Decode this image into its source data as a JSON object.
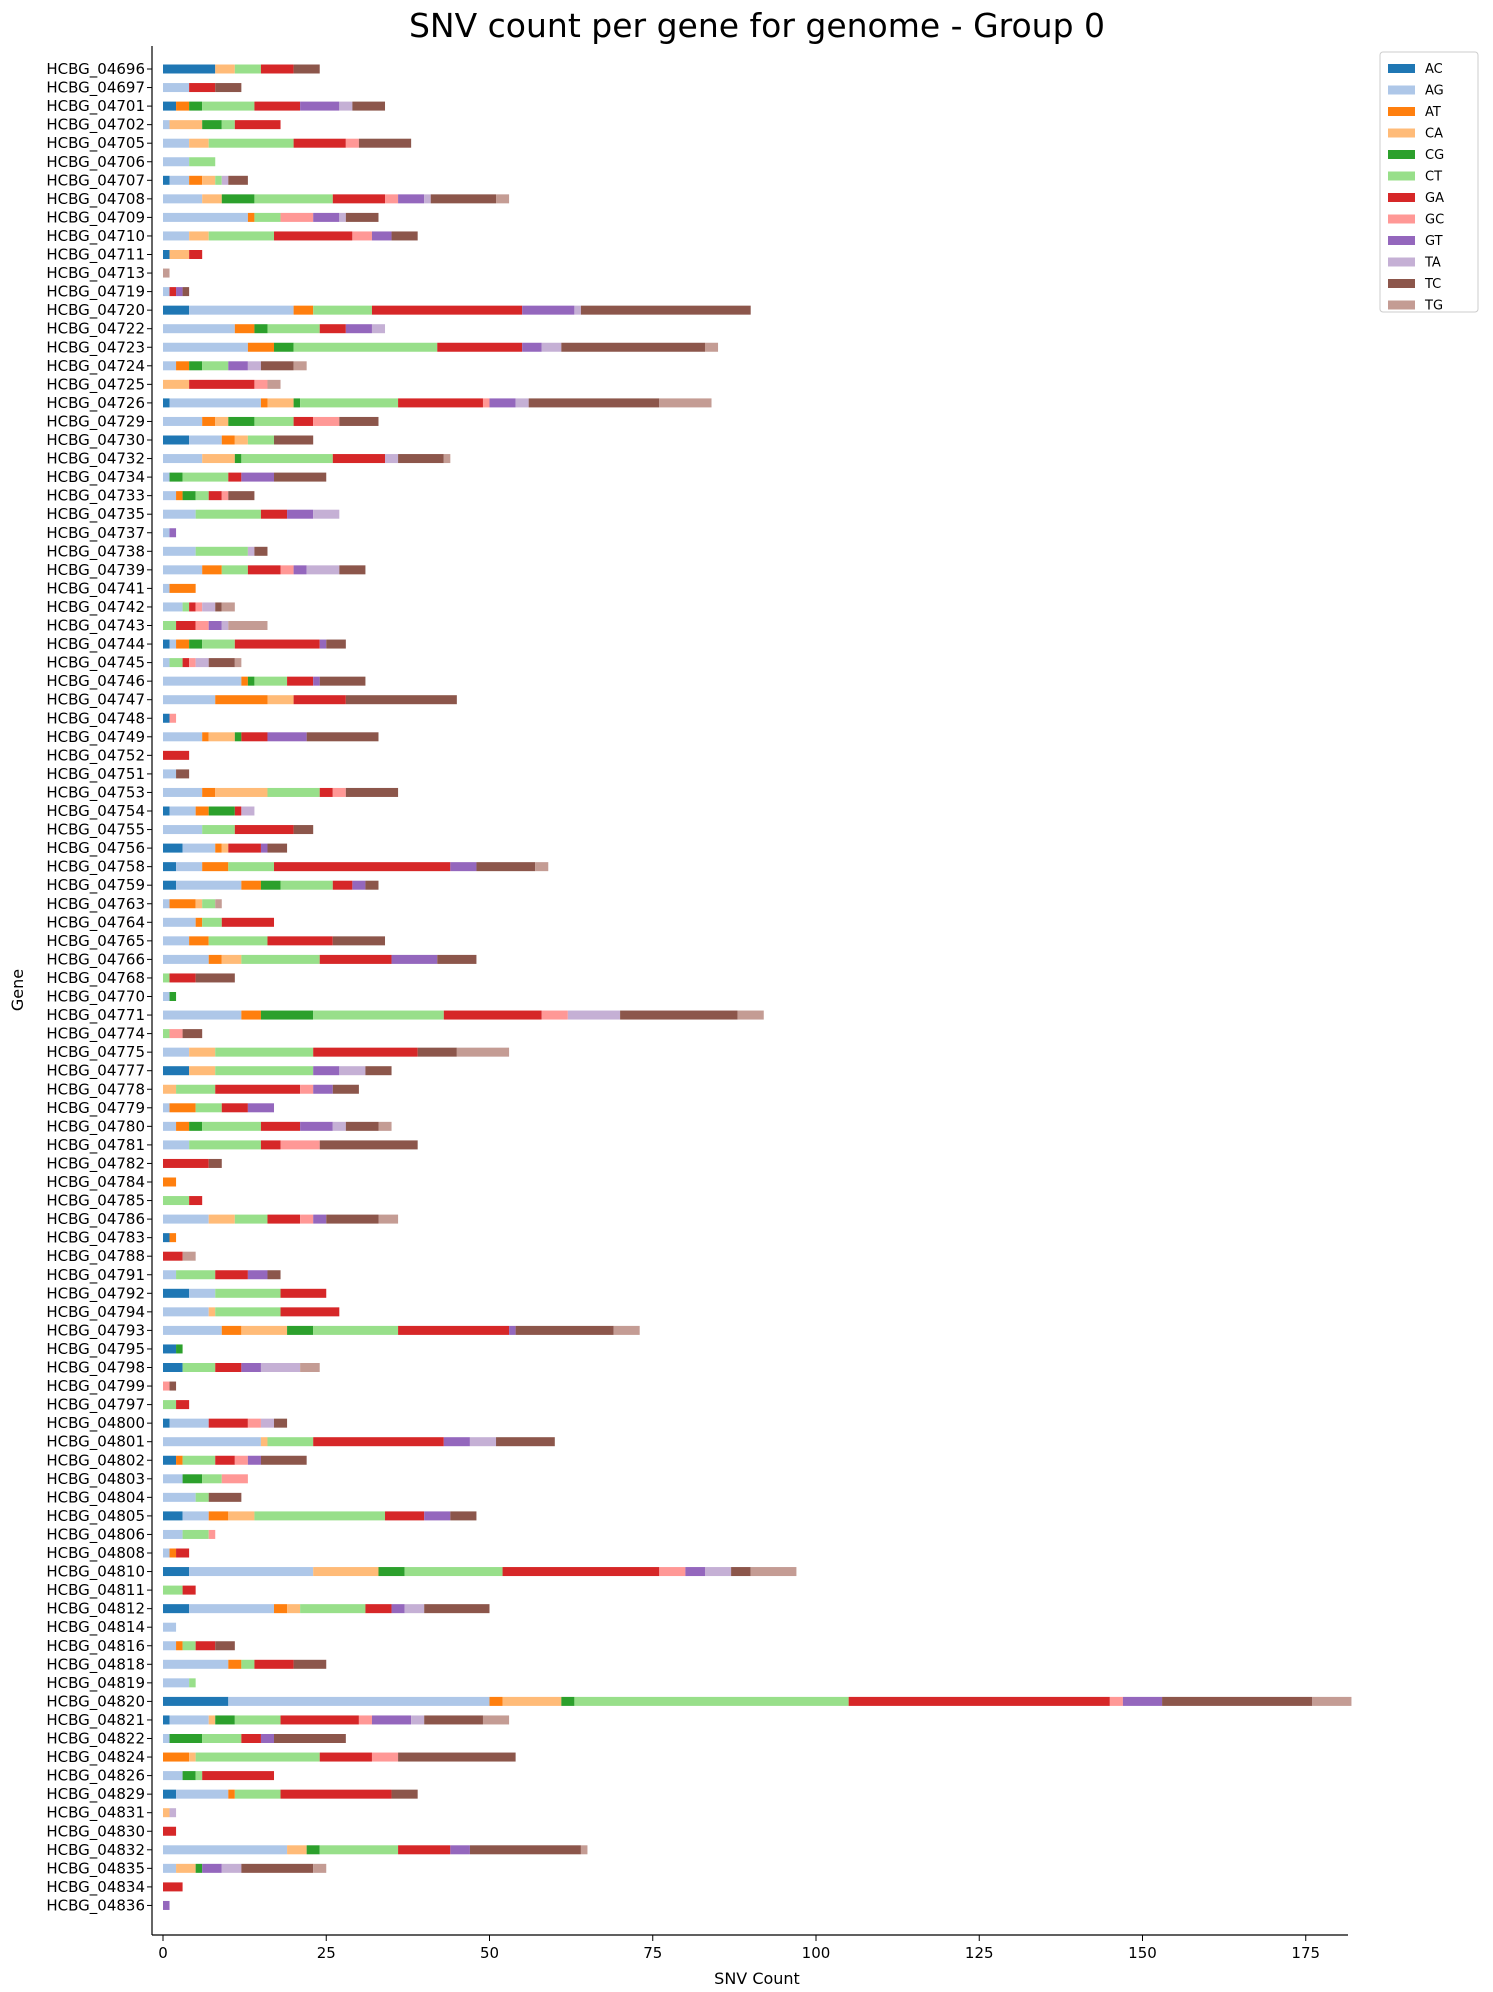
{
  "chart_data": {
    "type": "bar",
    "orientation": "horizontal",
    "stacked": true,
    "title": "SNV count per gene for genome - Group 0",
    "xlabel": "SNV Count",
    "ylabel": "Gene",
    "xlim": [
      0,
      182
    ],
    "xticks": [
      0,
      25,
      50,
      75,
      100,
      125,
      150,
      175
    ],
    "legend_position": "outside-top-right",
    "series_colors": [
      "#1f77b4",
      "#aec7e8",
      "#ff7f0e",
      "#ffbb78",
      "#2ca02c",
      "#98df8a",
      "#d62728",
      "#ff9896",
      "#9467bd",
      "#c5b0d5",
      "#8c564b",
      "#c49c94"
    ],
    "series_names": [
      "AC",
      "AG",
      "AT",
      "CA",
      "CG",
      "CT",
      "GA",
      "GC",
      "GT",
      "TA",
      "TC",
      "TG"
    ],
    "categories": [
      "HCBG_04696",
      "HCBG_04697",
      "HCBG_04701",
      "HCBG_04702",
      "HCBG_04705",
      "HCBG_04706",
      "HCBG_04707",
      "HCBG_04708",
      "HCBG_04709",
      "HCBG_04710",
      "HCBG_04711",
      "HCBG_04713",
      "HCBG_04719",
      "HCBG_04720",
      "HCBG_04722",
      "HCBG_04723",
      "HCBG_04724",
      "HCBG_04725",
      "HCBG_04726",
      "HCBG_04729",
      "HCBG_04730",
      "HCBG_04732",
      "HCBG_04734",
      "HCBG_04733",
      "HCBG_04735",
      "HCBG_04737",
      "HCBG_04738",
      "HCBG_04739",
      "HCBG_04741",
      "HCBG_04742",
      "HCBG_04743",
      "HCBG_04744",
      "HCBG_04745",
      "HCBG_04746",
      "HCBG_04747",
      "HCBG_04748",
      "HCBG_04749",
      "HCBG_04752",
      "HCBG_04751",
      "HCBG_04753",
      "HCBG_04754",
      "HCBG_04755",
      "HCBG_04756",
      "HCBG_04758",
      "HCBG_04759",
      "HCBG_04763",
      "HCBG_04764",
      "HCBG_04765",
      "HCBG_04766",
      "HCBG_04768",
      "HCBG_04770",
      "HCBG_04771",
      "HCBG_04774",
      "HCBG_04775",
      "HCBG_04777",
      "HCBG_04778",
      "HCBG_04779",
      "HCBG_04780",
      "HCBG_04781",
      "HCBG_04782",
      "HCBG_04784",
      "HCBG_04785",
      "HCBG_04786",
      "HCBG_04783",
      "HCBG_04788",
      "HCBG_04791",
      "HCBG_04792",
      "HCBG_04794",
      "HCBG_04793",
      "HCBG_04795",
      "HCBG_04798",
      "HCBG_04799",
      "HCBG_04797",
      "HCBG_04800",
      "HCBG_04801",
      "HCBG_04802",
      "HCBG_04803",
      "HCBG_04804",
      "HCBG_04805",
      "HCBG_04806",
      "HCBG_04808",
      "HCBG_04810",
      "HCBG_04811",
      "HCBG_04812",
      "HCBG_04814",
      "HCBG_04816",
      "HCBG_04818",
      "HCBG_04819",
      "HCBG_04820",
      "HCBG_04821",
      "HCBG_04822",
      "HCBG_04824",
      "HCBG_04826",
      "HCBG_04829",
      "HCBG_04831",
      "HCBG_04830",
      "HCBG_04832",
      "HCBG_04835",
      "HCBG_04834",
      "HCBG_04836"
    ],
    "values": [
      [
        8,
        0,
        0,
        3,
        0,
        4,
        5,
        0,
        0,
        0,
        4,
        0
      ],
      [
        0,
        4,
        0,
        0,
        0,
        0,
        4,
        0,
        0,
        0,
        4,
        0
      ],
      [
        2,
        0,
        2,
        0,
        2,
        8,
        7,
        0,
        6,
        2,
        5,
        0
      ],
      [
        0,
        1,
        0,
        5,
        3,
        2,
        7,
        0,
        0,
        0,
        0,
        0
      ],
      [
        0,
        4,
        0,
        3,
        0,
        13,
        8,
        2,
        0,
        0,
        8,
        0
      ],
      [
        0,
        4,
        0,
        0,
        0,
        4,
        0,
        0,
        0,
        0,
        0,
        0
      ],
      [
        1,
        3,
        2,
        2,
        0,
        1,
        0,
        0,
        0,
        1,
        3,
        0
      ],
      [
        0,
        6,
        0,
        3,
        5,
        12,
        8,
        2,
        4,
        1,
        10,
        2
      ],
      [
        0,
        13,
        1,
        0,
        0,
        4,
        0,
        5,
        4,
        1,
        5,
        0
      ],
      [
        0,
        4,
        0,
        3,
        0,
        10,
        12,
        3,
        3,
        0,
        4,
        0
      ],
      [
        1,
        0,
        0,
        3,
        0,
        0,
        2,
        0,
        0,
        0,
        0,
        0
      ],
      [
        0,
        0,
        0,
        0,
        0,
        0,
        0,
        0,
        0,
        0,
        0,
        1
      ],
      [
        0,
        1,
        0,
        0,
        0,
        0,
        1,
        0,
        1,
        0,
        1,
        0
      ],
      [
        4,
        16,
        3,
        0,
        0,
        9,
        23,
        0,
        8,
        1,
        26,
        0
      ],
      [
        0,
        11,
        3,
        0,
        2,
        8,
        4,
        0,
        4,
        2,
        0,
        0
      ],
      [
        0,
        13,
        4,
        0,
        3,
        22,
        13,
        0,
        3,
        3,
        22,
        2
      ],
      [
        0,
        2,
        2,
        0,
        2,
        4,
        0,
        0,
        3,
        2,
        5,
        2
      ],
      [
        0,
        0,
        0,
        4,
        0,
        0,
        10,
        2,
        0,
        0,
        0,
        2
      ],
      [
        1,
        14,
        1,
        4,
        1,
        15,
        13,
        1,
        4,
        2,
        20,
        8
      ],
      [
        0,
        6,
        2,
        2,
        4,
        6,
        3,
        4,
        0,
        0,
        6,
        0
      ],
      [
        4,
        5,
        2,
        2,
        0,
        4,
        0,
        0,
        0,
        0,
        6,
        0
      ],
      [
        0,
        6,
        0,
        5,
        1,
        14,
        8,
        0,
        0,
        2,
        7,
        1
      ],
      [
        0,
        1,
        0,
        0,
        2,
        7,
        2,
        0,
        5,
        0,
        8,
        0
      ],
      [
        0,
        2,
        1,
        0,
        2,
        2,
        2,
        1,
        0,
        0,
        4,
        0
      ],
      [
        0,
        5,
        0,
        0,
        0,
        10,
        4,
        0,
        4,
        4,
        0,
        0
      ],
      [
        0,
        1,
        0,
        0,
        0,
        0,
        0,
        0,
        1,
        0,
        0,
        0
      ],
      [
        0,
        5,
        0,
        0,
        0,
        8,
        0,
        0,
        0,
        1,
        2,
        0
      ],
      [
        0,
        6,
        3,
        0,
        0,
        4,
        5,
        2,
        2,
        5,
        4,
        0
      ],
      [
        0,
        1,
        4,
        0,
        0,
        0,
        0,
        0,
        0,
        0,
        0,
        0
      ],
      [
        0,
        3,
        0,
        0,
        0,
        1,
        1,
        1,
        0,
        2,
        1,
        2
      ],
      [
        0,
        0,
        0,
        0,
        0,
        2,
        3,
        2,
        2,
        1,
        0,
        6
      ],
      [
        1,
        1,
        2,
        0,
        2,
        5,
        13,
        0,
        1,
        0,
        3,
        0
      ],
      [
        0,
        1,
        0,
        0,
        0,
        2,
        1,
        1,
        0,
        2,
        4,
        1
      ],
      [
        0,
        12,
        1,
        0,
        1,
        5,
        4,
        0,
        1,
        0,
        7,
        0
      ],
      [
        0,
        8,
        8,
        4,
        0,
        0,
        8,
        0,
        0,
        0,
        17,
        0
      ],
      [
        1,
        0,
        0,
        0,
        0,
        0,
        0,
        1,
        0,
        0,
        0,
        0
      ],
      [
        0,
        6,
        1,
        4,
        1,
        0,
        4,
        0,
        6,
        0,
        11,
        0
      ],
      [
        0,
        0,
        0,
        0,
        0,
        0,
        4,
        0,
        0,
        0,
        0,
        0
      ],
      [
        0,
        2,
        0,
        0,
        0,
        0,
        0,
        0,
        0,
        0,
        2,
        0
      ],
      [
        0,
        6,
        2,
        8,
        0,
        8,
        2,
        2,
        0,
        0,
        8,
        0
      ],
      [
        1,
        4,
        2,
        0,
        4,
        0,
        1,
        0,
        0,
        2,
        0,
        0
      ],
      [
        0,
        6,
        0,
        0,
        0,
        5,
        9,
        0,
        0,
        0,
        3,
        0
      ],
      [
        3,
        5,
        1,
        1,
        0,
        0,
        5,
        0,
        1,
        0,
        3,
        0
      ],
      [
        2,
        4,
        4,
        0,
        0,
        7,
        27,
        0,
        4,
        0,
        9,
        2
      ],
      [
        2,
        10,
        3,
        0,
        3,
        8,
        3,
        0,
        2,
        0,
        2,
        0
      ],
      [
        0,
        1,
        4,
        1,
        0,
        2,
        0,
        0,
        0,
        0,
        0,
        1
      ],
      [
        0,
        5,
        1,
        0,
        0,
        3,
        8,
        0,
        0,
        0,
        0,
        0
      ],
      [
        0,
        4,
        3,
        0,
        0,
        9,
        10,
        0,
        0,
        0,
        8,
        0
      ],
      [
        0,
        7,
        2,
        3,
        0,
        12,
        11,
        0,
        7,
        0,
        6,
        0
      ],
      [
        0,
        0,
        0,
        0,
        0,
        1,
        4,
        0,
        0,
        0,
        6,
        0
      ],
      [
        0,
        1,
        0,
        0,
        1,
        0,
        0,
        0,
        0,
        0,
        0,
        0
      ],
      [
        0,
        12,
        3,
        0,
        8,
        20,
        15,
        4,
        0,
        8,
        18,
        4
      ],
      [
        0,
        0,
        0,
        0,
        0,
        1,
        0,
        2,
        0,
        0,
        3,
        0
      ],
      [
        0,
        4,
        0,
        4,
        0,
        15,
        16,
        0,
        0,
        0,
        6,
        8
      ],
      [
        4,
        0,
        0,
        4,
        0,
        15,
        0,
        0,
        4,
        4,
        4,
        0
      ],
      [
        0,
        0,
        0,
        2,
        0,
        6,
        13,
        2,
        3,
        0,
        4,
        0
      ],
      [
        0,
        1,
        4,
        0,
        0,
        4,
        4,
        0,
        4,
        0,
        0,
        0
      ],
      [
        0,
        2,
        2,
        0,
        2,
        9,
        6,
        0,
        5,
        2,
        5,
        2
      ],
      [
        0,
        4,
        0,
        0,
        0,
        11,
        3,
        6,
        0,
        0,
        15,
        0
      ],
      [
        0,
        0,
        0,
        0,
        0,
        0,
        7,
        0,
        0,
        0,
        2,
        0
      ],
      [
        0,
        0,
        2,
        0,
        0,
        0,
        0,
        0,
        0,
        0,
        0,
        0
      ],
      [
        0,
        0,
        0,
        0,
        0,
        4,
        2,
        0,
        0,
        0,
        0,
        0
      ],
      [
        0,
        7,
        0,
        4,
        0,
        5,
        5,
        2,
        2,
        0,
        8,
        3
      ],
      [
        1,
        0,
        1,
        0,
        0,
        0,
        0,
        0,
        0,
        0,
        0,
        0
      ],
      [
        0,
        0,
        0,
        0,
        0,
        0,
        3,
        0,
        0,
        0,
        0,
        2
      ],
      [
        0,
        2,
        0,
        0,
        0,
        6,
        5,
        0,
        3,
        0,
        2,
        0
      ],
      [
        4,
        4,
        0,
        0,
        0,
        10,
        7,
        0,
        0,
        0,
        0,
        0
      ],
      [
        0,
        7,
        0,
        1,
        0,
        10,
        9,
        0,
        0,
        0,
        0,
        0
      ],
      [
        0,
        9,
        3,
        7,
        4,
        13,
        17,
        0,
        1,
        0,
        15,
        4
      ],
      [
        2,
        0,
        0,
        0,
        1,
        0,
        0,
        0,
        0,
        0,
        0,
        0
      ],
      [
        3,
        0,
        0,
        0,
        0,
        5,
        4,
        0,
        3,
        6,
        0,
        3
      ],
      [
        0,
        0,
        0,
        0,
        0,
        0,
        0,
        1,
        0,
        0,
        1,
        0
      ],
      [
        0,
        0,
        0,
        0,
        0,
        2,
        2,
        0,
        0,
        0,
        0,
        0
      ],
      [
        1,
        6,
        0,
        0,
        0,
        0,
        6,
        2,
        0,
        2,
        2,
        0
      ],
      [
        0,
        15,
        0,
        1,
        0,
        7,
        20,
        0,
        4,
        4,
        9,
        0
      ],
      [
        2,
        0,
        1,
        0,
        0,
        5,
        3,
        2,
        2,
        0,
        7,
        0
      ],
      [
        0,
        3,
        0,
        0,
        3,
        3,
        0,
        4,
        0,
        0,
        0,
        0
      ],
      [
        0,
        5,
        0,
        0,
        0,
        2,
        0,
        0,
        0,
        0,
        5,
        0
      ],
      [
        3,
        4,
        3,
        4,
        0,
        20,
        6,
        0,
        4,
        0,
        4,
        0
      ],
      [
        0,
        3,
        0,
        0,
        0,
        4,
        0,
        1,
        0,
        0,
        0,
        0
      ],
      [
        0,
        1,
        1,
        0,
        0,
        0,
        2,
        0,
        0,
        0,
        0,
        0
      ],
      [
        4,
        19,
        0,
        10,
        4,
        15,
        24,
        4,
        3,
        4,
        3,
        7
      ],
      [
        0,
        0,
        0,
        0,
        0,
        3,
        2,
        0,
        0,
        0,
        0,
        0
      ],
      [
        4,
        13,
        2,
        2,
        0,
        10,
        4,
        0,
        2,
        3,
        10,
        0
      ],
      [
        0,
        2,
        0,
        0,
        0,
        0,
        0,
        0,
        0,
        0,
        0,
        0
      ],
      [
        0,
        2,
        1,
        0,
        0,
        2,
        3,
        0,
        0,
        0,
        3,
        0
      ],
      [
        0,
        10,
        2,
        0,
        0,
        2,
        6,
        0,
        0,
        0,
        5,
        0
      ],
      [
        0,
        4,
        0,
        0,
        0,
        1,
        0,
        0,
        0,
        0,
        0,
        0
      ],
      [
        10,
        40,
        2,
        9,
        2,
        42,
        40,
        2,
        6,
        0,
        23,
        6
      ],
      [
        1,
        6,
        0,
        1,
        3,
        7,
        12,
        2,
        6,
        2,
        9,
        4
      ],
      [
        0,
        1,
        0,
        0,
        5,
        6,
        3,
        0,
        2,
        0,
        11,
        0
      ],
      [
        0,
        0,
        4,
        1,
        0,
        19,
        8,
        4,
        0,
        0,
        18,
        0
      ],
      [
        0,
        3,
        0,
        0,
        2,
        1,
        11,
        0,
        0,
        0,
        0,
        0
      ],
      [
        2,
        8,
        1,
        0,
        0,
        7,
        17,
        0,
        0,
        0,
        4,
        0
      ],
      [
        0,
        0,
        0,
        1,
        0,
        0,
        0,
        0,
        0,
        1,
        0,
        0
      ],
      [
        0,
        0,
        0,
        0,
        0,
        0,
        2,
        0,
        0,
        0,
        0,
        0
      ],
      [
        0,
        19,
        0,
        3,
        2,
        12,
        8,
        0,
        3,
        0,
        17,
        1
      ],
      [
        0,
        2,
        0,
        3,
        1,
        0,
        0,
        0,
        3,
        3,
        11,
        2
      ],
      [
        0,
        0,
        0,
        0,
        0,
        0,
        3,
        0,
        0,
        0,
        0,
        0
      ],
      [
        0,
        0,
        0,
        0,
        0,
        0,
        0,
        0,
        1,
        0,
        0,
        0
      ]
    ]
  }
}
